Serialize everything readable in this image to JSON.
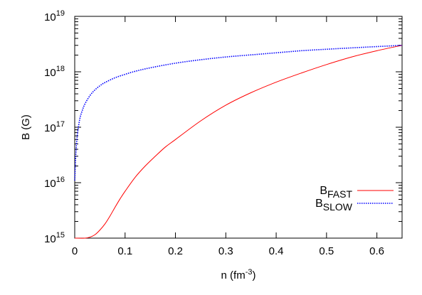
{
  "chart_data": {
    "type": "line",
    "xlabel": {
      "main": "n (fm",
      "sup": "-3",
      "tail": ")"
    },
    "ylabel": "B (G)",
    "xlim": [
      0,
      0.65
    ],
    "ylim": [
      1000000000000000.0,
      1e+19
    ],
    "yscale": "log",
    "grid": false,
    "legend_position": "bottom-right",
    "x_ticks": [
      {
        "value": 0,
        "label": "0"
      },
      {
        "value": 0.1,
        "label": "0.1"
      },
      {
        "value": 0.2,
        "label": "0.2"
      },
      {
        "value": 0.3,
        "label": "0.3"
      },
      {
        "value": 0.4,
        "label": "0.4"
      },
      {
        "value": 0.5,
        "label": "0.5"
      },
      {
        "value": 0.6,
        "label": "0.6"
      }
    ],
    "y_ticks": [
      {
        "value": 1000000000000000.0,
        "base": "10",
        "exp": "15"
      },
      {
        "value": 1e+16,
        "base": "10",
        "exp": "16"
      },
      {
        "value": 1e+17,
        "base": "10",
        "exp": "17"
      },
      {
        "value": 1e+18,
        "base": "10",
        "exp": "18"
      },
      {
        "value": 1e+19,
        "base": "10",
        "exp": "19"
      }
    ],
    "series": [
      {
        "name": {
          "main": "B",
          "sub": "FAST"
        },
        "color": "#ff0000",
        "dash": "solid",
        "x": [
          0.0,
          0.02,
          0.03,
          0.04,
          0.05,
          0.06,
          0.07,
          0.08,
          0.09,
          0.1,
          0.12,
          0.14,
          0.16,
          0.18,
          0.2,
          0.25,
          0.3,
          0.35,
          0.4,
          0.45,
          0.5,
          0.55,
          0.6,
          0.65
        ],
        "y": [
          1000000000000000.0,
          1000000000000000.0,
          1040000000000000.0,
          1150000000000000.0,
          1400000000000000.0,
          1800000000000000.0,
          2500000000000000.0,
          3600000000000000.0,
          5100000000000000.0,
          7000000000000000.0,
          1.25e+16,
          2e+16,
          3e+16,
          4.4e+16,
          6e+16,
          1.3e+17,
          2.5e+17,
          4.2e+17,
          6.5e+17,
          9.5e+17,
          1.35e+18,
          1.85e+18,
          2.4e+18,
          3e+18
        ]
      },
      {
        "name": {
          "main": "B",
          "sub": "SLOW"
        },
        "color": "#0000ff",
        "dash": "dotted",
        "x": [
          0.0,
          0.002,
          0.005,
          0.01,
          0.015,
          0.02,
          0.03,
          0.04,
          0.05,
          0.06,
          0.08,
          0.1,
          0.12,
          0.15,
          0.2,
          0.25,
          0.3,
          0.35,
          0.4,
          0.45,
          0.5,
          0.55,
          0.6,
          0.65
        ],
        "y": [
          1.1e+16,
          3e+16,
          7e+16,
          1.4e+17,
          2e+17,
          2.6e+17,
          3.7e+17,
          4.7e+17,
          5.6e+17,
          6.4e+17,
          7.8e+17,
          9e+17,
          1.02e+18,
          1.18e+18,
          1.43e+18,
          1.65e+18,
          1.85e+18,
          2.02e+18,
          2.2e+18,
          2.4e+18,
          2.55e+18,
          2.7e+18,
          2.85e+18,
          3e+18
        ]
      }
    ]
  }
}
